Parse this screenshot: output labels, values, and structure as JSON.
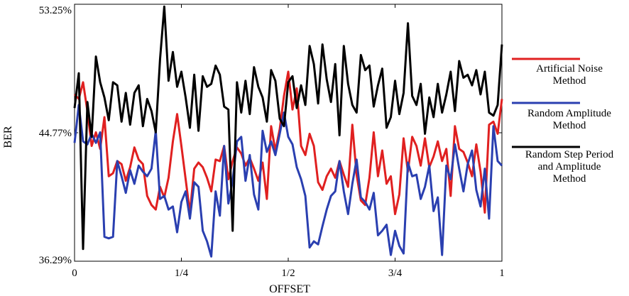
{
  "chart_data": {
    "type": "line",
    "xlabel": "OFFSET",
    "ylabel": "BER",
    "xlim": [
      0,
      1
    ],
    "ylim": [
      36.29,
      53.25
    ],
    "x_ticks": [
      {
        "value": 0,
        "label": "0"
      },
      {
        "value": 0.25,
        "label": "1/4"
      },
      {
        "value": 0.5,
        "label": "1/2"
      },
      {
        "value": 0.75,
        "label": "3/4"
      },
      {
        "value": 1,
        "label": "1"
      }
    ],
    "y_ticks": [
      {
        "value": 53.25,
        "label": "53.25%"
      },
      {
        "value": 44.77,
        "label": "44.77%"
      },
      {
        "value": 36.29,
        "label": "36.29%"
      }
    ],
    "grid": false,
    "legend_position": "right",
    "series": [
      {
        "name": "Artificial Noise Method",
        "legend_lines": [
          "Artificial Noise",
          "Method"
        ],
        "color": "#e02020",
        "values": [
          47.3,
          47.0,
          48.1,
          46.2,
          43.9,
          44.8,
          43.7,
          45.8,
          41.9,
          42.1,
          42.9,
          42.7,
          41.6,
          42.5,
          43.8,
          43.0,
          42.7,
          40.6,
          40.0,
          39.7,
          41.2,
          40.5,
          41.8,
          44.2,
          46.0,
          43.9,
          41.7,
          39.5,
          42.4,
          42.8,
          42.5,
          41.8,
          40.9,
          43.0,
          42.9,
          43.9,
          41.7,
          42.9,
          43.8,
          43.4,
          42.6,
          43.1,
          42.4,
          41.6,
          42.8,
          40.4,
          45.2,
          43.6,
          45.0,
          47.2,
          48.8,
          46.3,
          47.7,
          43.9,
          43.3,
          44.7,
          43.9,
          41.5,
          41.0,
          41.9,
          42.4,
          41.8,
          42.9,
          42.0,
          41.2,
          45.3,
          42.0,
          40.3,
          40.0,
          41.8,
          44.8,
          41.9,
          43.6,
          41.4,
          41.9,
          39.4,
          40.7,
          44.4,
          42.2,
          44.5,
          43.9,
          42.6,
          44.4,
          42.5,
          43.2,
          44.2,
          42.9,
          43.7,
          40.6,
          45.2,
          43.7,
          43.5,
          42.8,
          41.9,
          44.0,
          42.2,
          39.5,
          45.3,
          45.5,
          44.7,
          47.0
        ]
      },
      {
        "name": "Random Amplitude Method",
        "legend_lines": [
          "Random Amplitude",
          "Method"
        ],
        "color": "#2a3fb0",
        "values": [
          44.1,
          46.6,
          44.2,
          44.0,
          44.7,
          44.1,
          44.8,
          37.9,
          37.8,
          37.9,
          42.9,
          41.9,
          40.8,
          42.3,
          41.4,
          42.6,
          42.2,
          41.9,
          42.4,
          44.9,
          40.4,
          40.6,
          39.7,
          39.9,
          38.2,
          40.2,
          40.9,
          39.1,
          41.5,
          41.2,
          38.3,
          37.6,
          36.6,
          40.9,
          39.3,
          43.9,
          40.1,
          41.6,
          44.2,
          44.5,
          41.6,
          43.3,
          40.7,
          39.7,
          44.9,
          43.5,
          44.2,
          43.3,
          44.7,
          46.1,
          44.5,
          44.0,
          42.5,
          41.7,
          40.6,
          37.2,
          37.6,
          37.4,
          38.6,
          39.7,
          40.6,
          40.9,
          42.9,
          40.9,
          39.4,
          41.4,
          43.0,
          40.5,
          40.2,
          39.7,
          40.8,
          38.0,
          38.3,
          38.7,
          36.7,
          38.3,
          37.3,
          36.8,
          42.8,
          41.9,
          42.0,
          40.4,
          41.2,
          42.6,
          39.6,
          40.5,
          36.7,
          42.6,
          41.7,
          44.0,
          42.4,
          40.9,
          42.7,
          43.6,
          41.0,
          39.9,
          42.4,
          39.1,
          45.2,
          42.9,
          42.6
        ]
      },
      {
        "name": "Random Step Period and Amplitude Method",
        "legend_lines": [
          "Random Step Period",
          "and Amplitude",
          "Method"
        ],
        "color": "#000000",
        "values": [
          46.4,
          48.7,
          37.1,
          46.8,
          44.5,
          49.8,
          48.1,
          47.1,
          45.6,
          48.1,
          47.9,
          45.5,
          47.4,
          45.3,
          47.4,
          47.9,
          45.2,
          47.0,
          46.2,
          44.8,
          49.6,
          53.1,
          48.2,
          50.1,
          47.8,
          48.8,
          47.1,
          45.1,
          48.6,
          44.9,
          48.5,
          47.8,
          48.0,
          49.2,
          48.6,
          46.5,
          46.3,
          38.3,
          48.1,
          46.1,
          48.2,
          46.0,
          49.1,
          47.8,
          47.1,
          45.5,
          48.9,
          48.2,
          45.7,
          45.2,
          48.1,
          48.5,
          46.4,
          47.9,
          46.6,
          50.5,
          49.3,
          46.7,
          50.6,
          48.3,
          46.8,
          49.3,
          44.6,
          50.5,
          48.0,
          46.6,
          46.1,
          49.9,
          48.9,
          49.2,
          46.5,
          47.9,
          49.0,
          45.1,
          45.8,
          48.2,
          46.0,
          47.4,
          52.0,
          47.2,
          46.6,
          48.0,
          44.7,
          47.1,
          45.8,
          48.0,
          46.1,
          47.3,
          48.8,
          46.2,
          49.5,
          48.4,
          48.6,
          47.9,
          48.9,
          47.3,
          48.8,
          46.1,
          45.9,
          46.6,
          50.6
        ]
      }
    ]
  }
}
